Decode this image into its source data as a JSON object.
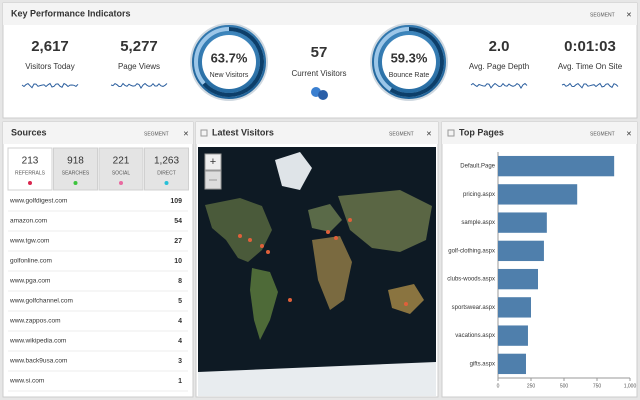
{
  "kpi": {
    "title": "Key Performance Indicators",
    "segment": "SEGMENT",
    "metrics": [
      {
        "value": "2,617",
        "label": "Visitors Today"
      },
      {
        "value": "5,277",
        "label": "Page Views"
      },
      {
        "value": "57",
        "label": "Current Visitors"
      },
      {
        "value": "2.0",
        "label": "Avg. Page Depth"
      },
      {
        "value": "0:01:03",
        "label": "Avg. Time On Site"
      }
    ],
    "gauges": [
      {
        "value": 63.7,
        "text": "63.7%",
        "label": "New Visitors"
      },
      {
        "value": 59.3,
        "text": "59.3%",
        "label": "Bounce Rate"
      }
    ]
  },
  "sources": {
    "title": "Sources",
    "segment": "SEGMENT",
    "tabs": [
      {
        "value": "213",
        "label": "REFERRALS",
        "color": "#d9264f"
      },
      {
        "value": "918",
        "label": "SEARCHES",
        "color": "#3cc43c"
      },
      {
        "value": "221",
        "label": "SOCIAL",
        "color": "#e86aa0"
      },
      {
        "value": "1,263",
        "label": "DIRECT",
        "color": "#27c0d8"
      }
    ],
    "rows": [
      {
        "site": "www.golfdigest.com",
        "count": 109
      },
      {
        "site": "amazon.com",
        "count": 54
      },
      {
        "site": "www.tgw.com",
        "count": 27
      },
      {
        "site": "golfonline.com",
        "count": 10
      },
      {
        "site": "www.pga.com",
        "count": 8
      },
      {
        "site": "www.golfchannel.com",
        "count": 5
      },
      {
        "site": "www.zappos.com",
        "count": 4
      },
      {
        "site": "www.wikipedia.com",
        "count": 4
      },
      {
        "site": "www.back9usa.com",
        "count": 3
      },
      {
        "site": "www.si.com",
        "count": 1
      }
    ]
  },
  "latest_visitors": {
    "title": "Latest Visitors",
    "segment": "SEGMENT"
  },
  "top_pages": {
    "title": "Top Pages",
    "segment": "SEGMENT",
    "chart_data": {
      "type": "bar",
      "orientation": "horizontal",
      "categories": [
        "Default.Page",
        "pricing.aspx",
        "sample.aspx",
        "golf-clothing.aspx",
        "clubs-woods.aspx",
        "sportswear.aspx",
        "vacations.aspx",
        "gifts.aspx"
      ],
      "values": [
        880,
        600,
        370,
        348,
        303,
        250,
        227,
        212
      ],
      "color": "#4f7fac",
      "xlim": [
        0,
        1000
      ],
      "xticks": [
        0,
        250,
        500,
        750,
        {
          "value": 1000,
          "label": "1,000"
        }
      ]
    }
  }
}
